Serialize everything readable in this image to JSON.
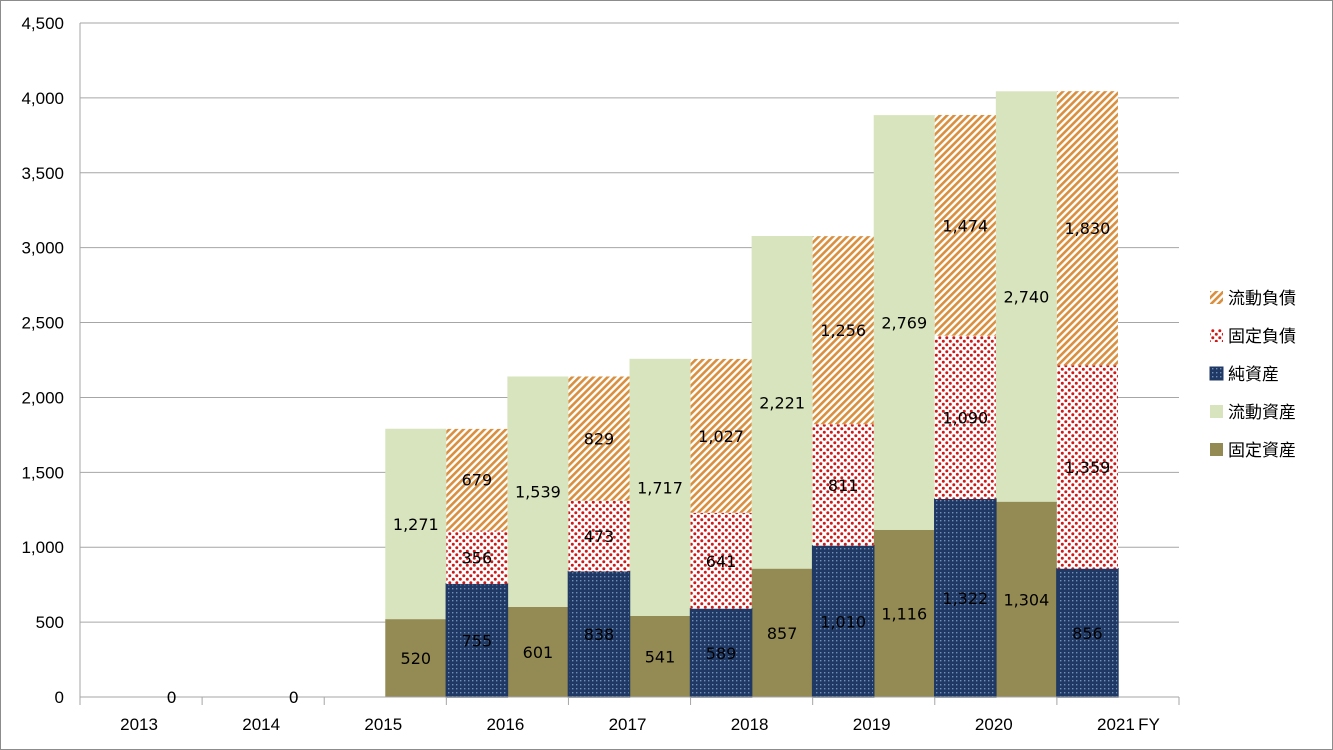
{
  "colors": {
    "fixed_assets": "#948a54",
    "current_assets": "#d7e4bd",
    "net_assets": "#1f3864",
    "fixed_liab": "#c00000",
    "current_liab": "#e2a45a"
  },
  "chart_data": {
    "type": "bar",
    "subtype": "stacked-balance-sheet",
    "title": "",
    "xlabel": "FY",
    "ylabel": "",
    "ylim": [
      0,
      4500
    ],
    "yticks": [
      0,
      500,
      1000,
      1500,
      2000,
      2500,
      3000,
      3500,
      4000,
      4500
    ],
    "ytick_labels": [
      "0",
      "500",
      "1,000",
      "1,500",
      "2,000",
      "2,500",
      "3,000",
      "3,500",
      "4,000",
      "4,500"
    ],
    "categories": [
      "2013",
      "2014",
      "2015",
      "2016",
      "2017",
      "2018",
      "2019",
      "2020",
      "2021"
    ],
    "x_axis_unit_label": "FY",
    "legend_position": "right",
    "asset_series": [
      {
        "key": "fixed_assets",
        "name": "固定資産",
        "values": [
          0,
          0,
          520,
          601,
          541,
          857,
          1116,
          1304,
          null
        ],
        "labels": [
          "0",
          "0",
          "520",
          "601",
          "541",
          "857",
          "1,116",
          "1,304",
          ""
        ]
      },
      {
        "key": "current_assets",
        "name": "流動資産",
        "values": [
          0,
          0,
          1271,
          1539,
          1717,
          2221,
          2769,
          2740,
          null
        ],
        "labels": [
          "",
          "",
          "1,271",
          "1,539",
          "1,717",
          "2,221",
          "2,769",
          "2,740",
          ""
        ]
      }
    ],
    "liability_series": [
      {
        "key": "net_assets",
        "name": "純資産",
        "values": [
          0,
          0,
          755,
          838,
          589,
          1010,
          1322,
          856,
          null
        ],
        "labels": [
          "",
          "",
          "755",
          "838",
          "589",
          "1,010",
          "1,322",
          "856",
          ""
        ]
      },
      {
        "key": "fixed_liab",
        "name": "固定負債",
        "values": [
          0,
          0,
          356,
          473,
          641,
          811,
          1090,
          1359,
          null
        ],
        "labels": [
          "",
          "",
          "356",
          "473",
          "641",
          "811",
          "1,090",
          "1,359",
          ""
        ]
      },
      {
        "key": "current_liab",
        "name": "流動負債",
        "values": [
          0,
          0,
          679,
          829,
          1027,
          1256,
          1474,
          1830,
          null
        ],
        "labels": [
          "",
          "",
          "679",
          "829",
          "1,027",
          "1,256",
          "1,474",
          "1,830",
          ""
        ]
      }
    ],
    "legend": [
      {
        "key": "current_liab",
        "label": "流動負債"
      },
      {
        "key": "fixed_liab",
        "label": "固定負債"
      },
      {
        "key": "net_assets",
        "label": "純資産"
      },
      {
        "key": "current_assets",
        "label": "流動資産"
      },
      {
        "key": "fixed_assets",
        "label": "固定資産"
      }
    ]
  }
}
